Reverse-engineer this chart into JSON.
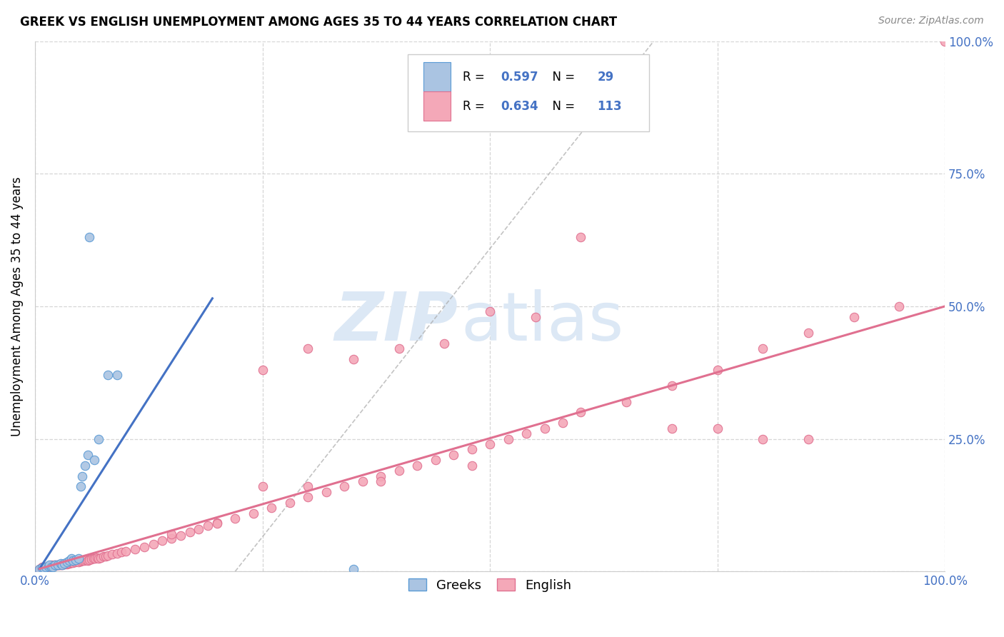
{
  "title": "GREEK VS ENGLISH UNEMPLOYMENT AMONG AGES 35 TO 44 YEARS CORRELATION CHART",
  "source": "Source: ZipAtlas.com",
  "ylabel": "Unemployment Among Ages 35 to 44 years",
  "xlim": [
    0.0,
    1.0
  ],
  "ylim": [
    0.0,
    1.0
  ],
  "greek_R": 0.597,
  "greek_N": 29,
  "english_R": 0.634,
  "english_N": 113,
  "greek_color": "#aac4e2",
  "greek_edge_color": "#5b9bd5",
  "english_color": "#f4a8b8",
  "english_edge_color": "#e07090",
  "blue_text_color": "#4472C4",
  "blue_line_color": "#4472C4",
  "pink_line_color": "#e07090",
  "greek_scatter_x": [
    0.005,
    0.008,
    0.01,
    0.012,
    0.015,
    0.016,
    0.018,
    0.02,
    0.022,
    0.025,
    0.028,
    0.03,
    0.032,
    0.035,
    0.038,
    0.04,
    0.042,
    0.045,
    0.048,
    0.05,
    0.052,
    0.055,
    0.058,
    0.06,
    0.065,
    0.07,
    0.08,
    0.09,
    0.35
  ],
  "greek_scatter_y": [
    0.005,
    0.007,
    0.006,
    0.008,
    0.01,
    0.012,
    0.008,
    0.009,
    0.012,
    0.013,
    0.015,
    0.012,
    0.015,
    0.018,
    0.02,
    0.025,
    0.02,
    0.022,
    0.025,
    0.16,
    0.18,
    0.2,
    0.22,
    0.63,
    0.21,
    0.25,
    0.37,
    0.37,
    0.005
  ],
  "english_scatter_x": [
    0.005,
    0.006,
    0.007,
    0.008,
    0.009,
    0.01,
    0.011,
    0.012,
    0.013,
    0.014,
    0.015,
    0.016,
    0.017,
    0.018,
    0.019,
    0.02,
    0.021,
    0.022,
    0.023,
    0.024,
    0.025,
    0.026,
    0.027,
    0.028,
    0.029,
    0.03,
    0.031,
    0.032,
    0.033,
    0.034,
    0.035,
    0.036,
    0.037,
    0.038,
    0.039,
    0.04,
    0.042,
    0.044,
    0.046,
    0.048,
    0.05,
    0.052,
    0.054,
    0.056,
    0.058,
    0.06,
    0.062,
    0.064,
    0.066,
    0.068,
    0.07,
    0.072,
    0.075,
    0.078,
    0.08,
    0.085,
    0.09,
    0.095,
    0.1,
    0.11,
    0.12,
    0.13,
    0.14,
    0.15,
    0.16,
    0.17,
    0.18,
    0.19,
    0.2,
    0.22,
    0.24,
    0.26,
    0.28,
    0.3,
    0.32,
    0.34,
    0.36,
    0.38,
    0.4,
    0.42,
    0.44,
    0.46,
    0.48,
    0.5,
    0.52,
    0.54,
    0.56,
    0.58,
    0.6,
    0.65,
    0.7,
    0.75,
    0.8,
    0.85,
    0.9,
    0.95,
    1.0,
    0.25,
    0.3,
    0.45,
    0.55,
    0.35,
    0.4,
    0.48,
    0.5,
    0.6,
    0.7,
    0.75,
    0.8,
    0.85,
    0.38,
    0.3,
    0.25,
    0.2,
    0.15
  ],
  "english_scatter_y": [
    0.005,
    0.006,
    0.007,
    0.008,
    0.009,
    0.008,
    0.007,
    0.008,
    0.009,
    0.01,
    0.009,
    0.01,
    0.011,
    0.012,
    0.01,
    0.011,
    0.012,
    0.011,
    0.012,
    0.013,
    0.012,
    0.013,
    0.012,
    0.013,
    0.014,
    0.013,
    0.014,
    0.015,
    0.014,
    0.015,
    0.014,
    0.015,
    0.016,
    0.015,
    0.016,
    0.017,
    0.017,
    0.018,
    0.019,
    0.018,
    0.019,
    0.02,
    0.021,
    0.022,
    0.021,
    0.022,
    0.023,
    0.024,
    0.025,
    0.026,
    0.025,
    0.026,
    0.028,
    0.029,
    0.03,
    0.032,
    0.034,
    0.036,
    0.038,
    0.042,
    0.046,
    0.052,
    0.058,
    0.062,
    0.068,
    0.075,
    0.08,
    0.086,
    0.092,
    0.1,
    0.11,
    0.12,
    0.13,
    0.14,
    0.15,
    0.16,
    0.17,
    0.18,
    0.19,
    0.2,
    0.21,
    0.22,
    0.23,
    0.24,
    0.25,
    0.26,
    0.27,
    0.28,
    0.3,
    0.32,
    0.35,
    0.38,
    0.42,
    0.45,
    0.48,
    0.5,
    1.0,
    0.38,
    0.42,
    0.43,
    0.48,
    0.4,
    0.42,
    0.2,
    0.49,
    0.63,
    0.27,
    0.27,
    0.25,
    0.25,
    0.17,
    0.16,
    0.16,
    0.09,
    0.07
  ],
  "greek_line_x": [
    0.005,
    0.195
  ],
  "greek_line_y": [
    0.005,
    0.515
  ],
  "english_line_x": [
    0.005,
    1.0
  ],
  "english_line_y": [
    0.005,
    0.5
  ],
  "diag_line_x": [
    0.22,
    0.68
  ],
  "diag_line_y": [
    0.0,
    1.0
  ]
}
